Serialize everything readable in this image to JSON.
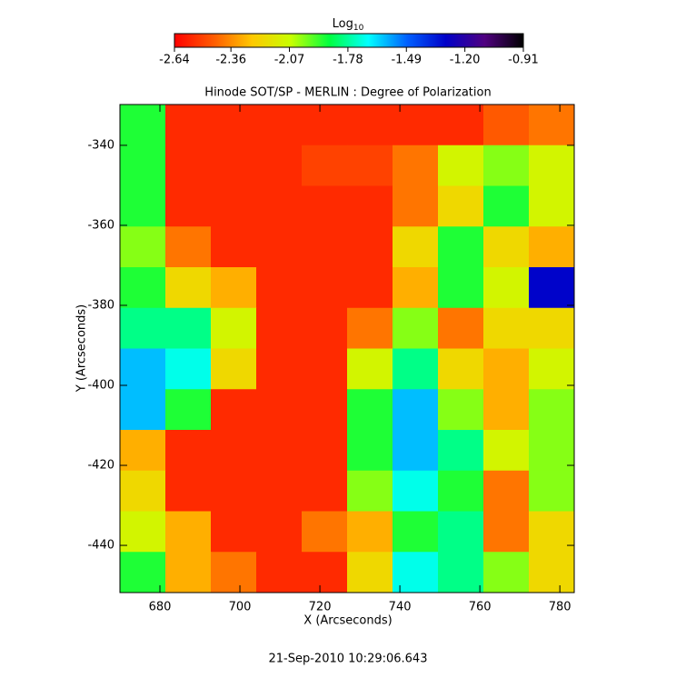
{
  "chart_data": {
    "type": "heatmap",
    "title": "Hinode SOT/SP - MERLIN : Degree of Polarization",
    "xlabel": "X (Arcseconds)",
    "ylabel": "Y (Arcseconds)",
    "footer": "21-Sep-2010 10:29:06.643",
    "colorbar_label": "Log",
    "colorbar_label_sub": "10",
    "xlim": [
      670,
      783.6
    ],
    "ylim": [
      -451.8,
      -329.8
    ],
    "xticks": [
      680,
      700,
      720,
      740,
      760,
      780
    ],
    "yticks": [
      -340,
      -360,
      -380,
      -400,
      -420,
      -440
    ],
    "zlim": [
      -2.64,
      -0.91
    ],
    "zticks": [
      -2.64,
      -2.36,
      -2.07,
      -1.78,
      -1.49,
      {
        "value": -1.2,
        "label": "-1.20"
      },
      -0.91
    ],
    "colormap": [
      "#ff0000",
      "#ff5a00",
      "#ffc800",
      "#c8ff00",
      "#00ff40",
      "#00ffff",
      "#0060ff",
      "#0000c8",
      "#500080",
      "#000000"
    ],
    "z": [
      [
        -1.9,
        -2.55,
        -2.55,
        -2.55,
        -2.55,
        -2.55,
        -2.55,
        -2.55,
        -2.45,
        -2.4
      ],
      [
        -1.9,
        -2.55,
        -2.55,
        -2.55,
        -2.5,
        -2.5,
        -2.4,
        -2.1,
        -2.0,
        -2.1
      ],
      [
        -1.9,
        -2.55,
        -2.55,
        -2.55,
        -2.55,
        -2.55,
        -2.4,
        -2.2,
        -1.9,
        -2.1
      ],
      [
        -2.0,
        -2.4,
        -2.55,
        -2.55,
        -2.55,
        -2.55,
        -2.2,
        -1.9,
        -2.2,
        -2.3
      ],
      [
        -1.9,
        -2.2,
        -2.3,
        -2.55,
        -2.55,
        -2.55,
        -2.3,
        -1.9,
        -2.1,
        -1.3
      ],
      [
        -1.8,
        -1.8,
        -2.1,
        -2.55,
        -2.55,
        -2.4,
        -2.0,
        -2.4,
        -2.2,
        -2.2
      ],
      [
        -1.6,
        -1.7,
        -2.2,
        -2.55,
        -2.55,
        -2.1,
        -1.8,
        -2.2,
        -2.3,
        -2.1
      ],
      [
        -1.6,
        -1.9,
        -2.55,
        -2.55,
        -2.55,
        -1.9,
        -1.6,
        -2.0,
        -2.3,
        -2.0
      ],
      [
        -2.3,
        -2.55,
        -2.55,
        -2.55,
        -2.55,
        -1.9,
        -1.6,
        -1.8,
        -2.1,
        -2.0
      ],
      [
        -2.2,
        -2.55,
        -2.55,
        -2.55,
        -2.55,
        -2.0,
        -1.7,
        -1.9,
        -2.4,
        -2.0
      ],
      [
        -2.1,
        -2.3,
        -2.55,
        -2.55,
        -2.4,
        -2.3,
        -1.9,
        -1.8,
        -2.4,
        -2.2
      ],
      [
        -1.9,
        -2.3,
        -2.4,
        -2.55,
        -2.55,
        -2.2,
        -1.7,
        -1.8,
        -2.0,
        -2.2
      ]
    ]
  }
}
